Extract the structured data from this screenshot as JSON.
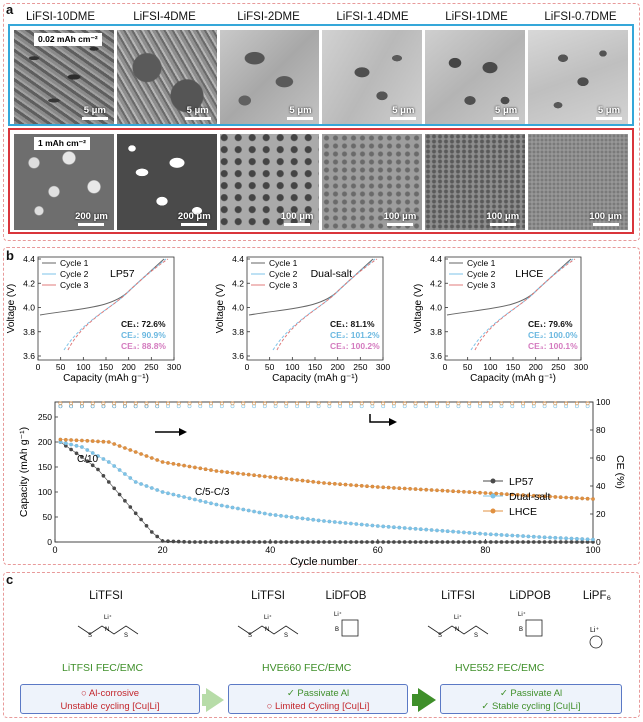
{
  "panel_a": {
    "letter": "a",
    "columns": [
      "LiFSI-10DME",
      "LiFSI-4DME",
      "LiFSI-2DME",
      "LiFSI-1.4DME",
      "LiFSI-1DME",
      "LiFSI-0.7DME"
    ],
    "top_row": {
      "areal_label": "0.02 mAh cm⁻²",
      "scale_bars": [
        "5 μm",
        "5 μm",
        "5 μm",
        "5 μm",
        "5 μm",
        "5 μm"
      ]
    },
    "bottom_row": {
      "areal_label": "1 mAh cm⁻²",
      "scale_bars": [
        "200 μm",
        "200 μm",
        "100 μm",
        "100 μm",
        "100 μm",
        "100 μm"
      ]
    }
  },
  "panel_b": {
    "letter": "b",
    "voltage_plots": [
      {
        "name": "LP57",
        "ce": [
          "CE₁: 72.6%",
          "CE₂: 90.9%",
          "CE₃: 88.8%"
        ]
      },
      {
        "name": "Dual-salt",
        "ce": [
          "CE₁: 81.1%",
          "CE₂: 101.2%",
          "CE₃: 100.2%"
        ]
      },
      {
        "name": "LHCE",
        "ce": [
          "CE₁: 79.6%",
          "CE₂: 100.0%",
          "CE₃: 100.1%"
        ]
      }
    ],
    "cycle_legend": [
      "Cycle 1",
      "Cycle 2",
      "Cycle 3"
    ],
    "voltage_axes": {
      "ylabel": "Voltage (V)",
      "xlabel": "Capacity (mAh g⁻¹)",
      "yticks": [
        "4.4",
        "4.2",
        "4.0",
        "3.8",
        "3.6"
      ],
      "xticks": [
        "0",
        "50",
        "100",
        "150",
        "200",
        "250",
        "300"
      ]
    },
    "cycling": {
      "ylabel": "Capacity (mAh g⁻¹)",
      "y2label": "CE (%)",
      "xlabel": "Cycle number",
      "yticks": [
        "0",
        "50",
        "100",
        "150",
        "200",
        "250"
      ],
      "y2ticks": [
        "0",
        "20",
        "40",
        "60",
        "80",
        "100"
      ],
      "xticks": [
        "0",
        "20",
        "40",
        "60",
        "80",
        "100"
      ],
      "legend": [
        "LP57",
        "Dual-salt",
        "LHCE"
      ],
      "annotations": [
        "C/10",
        "C/5-C/3"
      ]
    }
  },
  "chart_data": {
    "type": "line",
    "title": "",
    "xlabel": "Cycle number",
    "ylabel": "Capacity (mAh g⁻¹)",
    "xlim": [
      0,
      100
    ],
    "ylim": [
      0,
      280
    ],
    "y2lim": [
      0,
      100
    ],
    "series": [
      {
        "name": "LP57",
        "color": "#4a4a4a",
        "x": [
          1,
          3,
          5,
          8,
          10,
          12,
          14,
          16,
          18,
          20,
          25,
          100
        ],
        "values": [
          200,
          185,
          170,
          145,
          120,
          95,
          70,
          45,
          20,
          2,
          0,
          0
        ]
      },
      {
        "name": "Dual-salt",
        "color": "#7cc3e8",
        "x": [
          1,
          5,
          10,
          15,
          20,
          30,
          40,
          50,
          60,
          70,
          80,
          90,
          100
        ],
        "values": [
          200,
          190,
          160,
          120,
          100,
          75,
          55,
          42,
          32,
          24,
          16,
          10,
          5
        ]
      },
      {
        "name": "LHCE",
        "color": "#e09040",
        "x": [
          1,
          5,
          10,
          15,
          20,
          30,
          40,
          50,
          60,
          70,
          80,
          90,
          100
        ],
        "values": [
          205,
          203,
          200,
          180,
          160,
          142,
          130,
          118,
          110,
          104,
          98,
          92,
          86
        ]
      }
    ]
  },
  "panel_c": {
    "letter": "c",
    "salts": [
      "LiTFSI",
      "LiTFSI",
      "LiDFOB",
      "LiTFSI",
      "LiDPOB",
      "LiPF₆"
    ],
    "electrolytes": [
      "LiTFSI  FEC/EMC",
      "HVE660 FEC/EMC",
      "HVE552 FEC/EMC"
    ],
    "status": [
      {
        "mark": "○",
        "lines": [
          "Al-corrosive",
          "Unstable cycling [Cu|Li]"
        ]
      },
      {
        "lines": [
          "✓ Passivate Al",
          "○  Limited Cycling [Cu|Li]"
        ]
      },
      {
        "lines": [
          "✓ Passivate Al",
          "✓  Stable cycling [Cu|Li]"
        ]
      }
    ]
  }
}
